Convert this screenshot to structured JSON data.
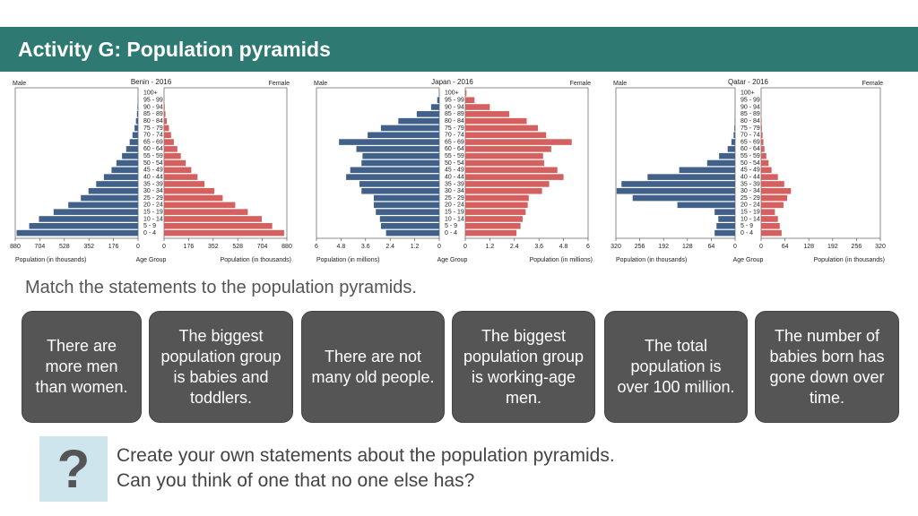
{
  "header": {
    "title": "Activity G: Population pyramids"
  },
  "chart_data": [
    {
      "type": "pyramid",
      "title": "Benin - 2016",
      "age_label": "Age Group",
      "xlabel": "Population (in thousands)",
      "categories": [
        "0 - 4",
        "5 - 9",
        "10 - 14",
        "15 - 19",
        "20 - 24",
        "25 - 29",
        "30 - 34",
        "35 - 39",
        "40 - 44",
        "45 - 49",
        "50 - 54",
        "55 - 59",
        "60 - 64",
        "65 - 69",
        "70 - 74",
        "75 - 79",
        "80 - 84",
        "85 - 89",
        "90 - 94",
        "95 - 99",
        "100+"
      ],
      "series": [
        {
          "name": "Male",
          "color": "#41618a",
          "values": [
            870,
            780,
            710,
            605,
            500,
            410,
            355,
            300,
            245,
            190,
            155,
            115,
            85,
            60,
            40,
            25,
            15,
            8,
            4,
            2,
            0
          ]
        },
        {
          "name": "Female",
          "color": "#d4605f",
          "values": [
            860,
            775,
            700,
            600,
            510,
            420,
            360,
            290,
            240,
            195,
            155,
            120,
            95,
            70,
            50,
            35,
            20,
            10,
            5,
            2,
            1
          ]
        }
      ],
      "xlim": [
        0,
        880
      ],
      "xticks": [
        0,
        176,
        352,
        528,
        704,
        880
      ]
    },
    {
      "type": "pyramid",
      "title": "Japan - 2016",
      "age_label": "Age Group",
      "xlabel": "Population (in millions)",
      "categories": [
        "0 - 4",
        "5 - 9",
        "10 - 14",
        "15 - 19",
        "20 - 24",
        "25 - 29",
        "30 - 34",
        "35 - 39",
        "40 - 44",
        "45 - 49",
        "50 - 54",
        "55 - 59",
        "60 - 64",
        "65 - 69",
        "70 - 74",
        "75 - 79",
        "80 - 84",
        "85 - 89",
        "90 - 94",
        "95 - 99",
        "100+"
      ],
      "series": [
        {
          "name": "Male",
          "color": "#41618a",
          "values": [
            2.6,
            2.85,
            2.9,
            3.1,
            3.2,
            3.2,
            3.8,
            3.9,
            4.55,
            4.35,
            3.8,
            3.75,
            4.05,
            4.9,
            3.5,
            2.85,
            2.0,
            1.1,
            0.4,
            0.1,
            0.01
          ]
        },
        {
          "name": "Female",
          "color": "#d4605f",
          "values": [
            2.5,
            2.7,
            2.8,
            2.95,
            3.05,
            3.1,
            3.75,
            4.1,
            4.8,
            4.5,
            3.85,
            3.8,
            4.2,
            5.2,
            3.95,
            3.55,
            3.0,
            2.15,
            1.2,
            0.45,
            0.06
          ]
        }
      ],
      "xlim": [
        0,
        6
      ],
      "xticks": [
        0,
        1.2,
        2.4,
        3.6,
        4.8,
        6
      ]
    },
    {
      "type": "pyramid",
      "title": "Qatar - 2016",
      "age_label": "Age Group",
      "xlabel": "Population (in thousands)",
      "categories": [
        "0 - 4",
        "5 - 9",
        "10 - 14",
        "15 - 19",
        "20 - 24",
        "25 - 29",
        "30 - 34",
        "35 - 39",
        "40 - 44",
        "45 - 49",
        "50 - 54",
        "55 - 59",
        "60 - 64",
        "65 - 69",
        "70 - 74",
        "75 - 79",
        "80 - 84",
        "85 - 89",
        "90 - 94",
        "95 - 99",
        "100+"
      ],
      "series": [
        {
          "name": "Male",
          "color": "#41618a",
          "values": [
            55,
            50,
            45,
            55,
            155,
            275,
            318,
            305,
            235,
            150,
            75,
            43,
            20,
            10,
            4,
            2,
            1,
            0.5,
            0.2,
            0.1,
            0
          ]
        },
        {
          "name": "Female",
          "color": "#d4605f",
          "values": [
            55,
            50,
            45,
            37,
            60,
            70,
            80,
            62,
            45,
            28,
            20,
            14,
            9,
            6,
            4,
            2,
            1.5,
            0.8,
            0.3,
            0.1,
            0
          ]
        }
      ],
      "xlim": [
        0,
        320
      ],
      "xticks": [
        0,
        64,
        128,
        192,
        256,
        320
      ]
    }
  ],
  "instruction": "Match the statements to the population pyramids.",
  "cards": [
    "There are more men than women.",
    "The biggest population group is babies and toddlers.",
    "There are not many old people.",
    "The biggest population group is working-age men.",
    "The total population is over 100 million.",
    "The number of babies born has gone down over time."
  ],
  "footer": [
    "Create your own statements about the population pyramids.",
    "Can you think of one that no one else has?"
  ]
}
